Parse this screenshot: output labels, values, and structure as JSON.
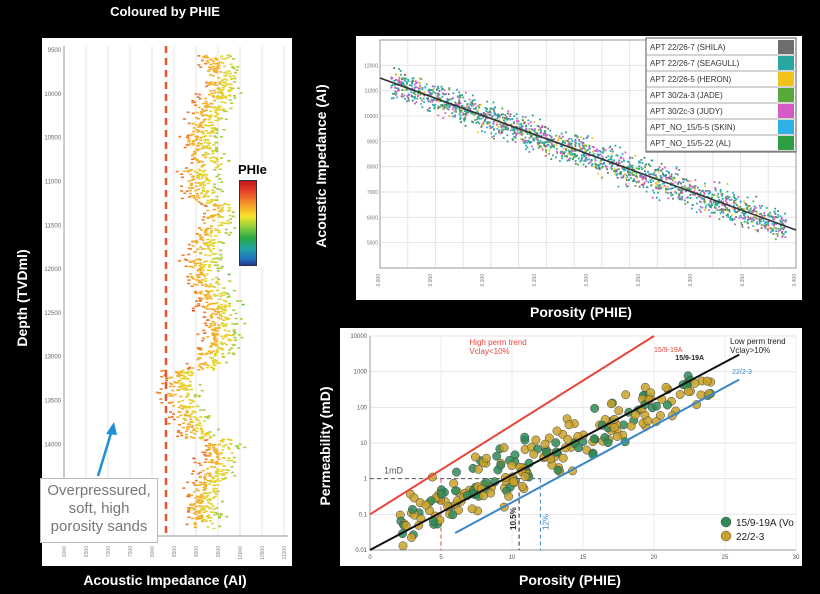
{
  "left_panel": {
    "title": "Coloured by PHIE",
    "ylabel": "Depth (TVDml)",
    "xlabel": "Acoustic Impedance (AI)",
    "colorbar_label": "PHIe",
    "annotation_lines": [
      "Overpressured,",
      "soft, high",
      "porosity sands"
    ],
    "colors": {
      "dashed_line": "#e8542a",
      "arrow": "#1f8fd6"
    }
  },
  "top_right_panel": {
    "xlabel": "Porosity (PHIE)",
    "ylabel": "Acoustic Impedance (AI)",
    "legend": [
      {
        "label": "APT 22/26-7 (SHILA)",
        "color": "#6e6e6e"
      },
      {
        "label": "APT 22/26-7 (SEAGULL)",
        "color": "#2aa6a0"
      },
      {
        "label": "APT 22/26-5 (HERON)",
        "color": "#f2c21b"
      },
      {
        "label": "APT 30/2a-3 (JADE)",
        "color": "#5aa83c"
      },
      {
        "label": "APT 30/2c-3 (JUDY)",
        "color": "#d45bc6"
      },
      {
        "label": "APT_NO_15/5-5 (SKIN)",
        "color": "#2fb0e6"
      },
      {
        "label": "APT_NO_15/5-22 (AL)",
        "color": "#2e9e45"
      }
    ]
  },
  "bottom_right_panel": {
    "xlabel": "Porosity (PHIE)",
    "ylabel": "Permeability (mD)",
    "high_perm_label": [
      "High perm trend",
      "Vclay<10%"
    ],
    "low_perm_label": [
      "Low perm trend",
      "Vclay>10%"
    ],
    "onemd_label": "1mD",
    "well_labels": [
      "15/9-19A",
      "22/2-3"
    ],
    "legend": [
      {
        "label": "15/9-19A (Vo",
        "color": "#2e8b57"
      },
      {
        "label": "22/2-3",
        "color": "#c9a227"
      }
    ],
    "porosity_cut_labels": [
      "10.5%",
      "12%"
    ]
  },
  "chart_data": [
    {
      "type": "scatter",
      "title": "Coloured by PHIE",
      "xlabel": "Acoustic Impedance (AI)",
      "ylabel": "Depth (TVDml)",
      "ytick_labels": [
        "9500",
        "10000",
        "10500",
        "11000",
        "11500",
        "12000",
        "12500",
        "13000",
        "13500",
        "14000",
        "14500",
        "15000"
      ],
      "colorbar": "PHIe"
    },
    {
      "type": "scatter",
      "xlabel": "Porosity (PHIE)",
      "ylabel": "Acoustic Impedance (AI)",
      "xlim": [
        0,
        0.4
      ],
      "ylim": [
        4000,
        13000
      ],
      "trend_line": [
        [
          0,
          11500
        ],
        [
          0.4,
          5500
        ]
      ],
      "series": [
        {
          "name": "APT 22/26-7 (SHILA)"
        },
        {
          "name": "APT 22/26-7 (SEAGULL)"
        },
        {
          "name": "APT 22/26-5 (HERON)"
        },
        {
          "name": "APT 30/2a-3 (JADE)"
        },
        {
          "name": "APT 30/2c-3 (JUDY)"
        },
        {
          "name": "APT_NO_15/5-5 (SKIN)"
        },
        {
          "name": "APT_NO_15/5-22 (AL)"
        }
      ]
    },
    {
      "type": "scatter",
      "xlabel": "Porosity (PHIE)",
      "ylabel": "Permeability (mD)",
      "yscale": "log",
      "ylim": [
        0.01,
        10000
      ],
      "xlim": [
        0,
        30
      ],
      "xticks": [
        0,
        5,
        10,
        15,
        20,
        25,
        30
      ],
      "yticks": [
        "0.01",
        "0.1",
        "1",
        "10",
        "100",
        "1000",
        "10000"
      ],
      "trend_lines": [
        {
          "name": "High perm trend",
          "color": "#e8453c",
          "points": [
            [
              0,
              0.1
            ],
            [
              20,
              10000
            ]
          ]
        },
        {
          "name": "Low perm trend",
          "color": "#111111",
          "points": [
            [
              0,
              0.01
            ],
            [
              26,
              3000
            ]
          ]
        },
        {
          "name": "",
          "color": "#3a86c8",
          "points": [
            [
              6,
              0.03
            ],
            [
              26,
              600
            ]
          ]
        }
      ],
      "series": [
        {
          "name": "15/9-19A (Vo"
        },
        {
          "name": "22/2-3"
        }
      ]
    }
  ]
}
